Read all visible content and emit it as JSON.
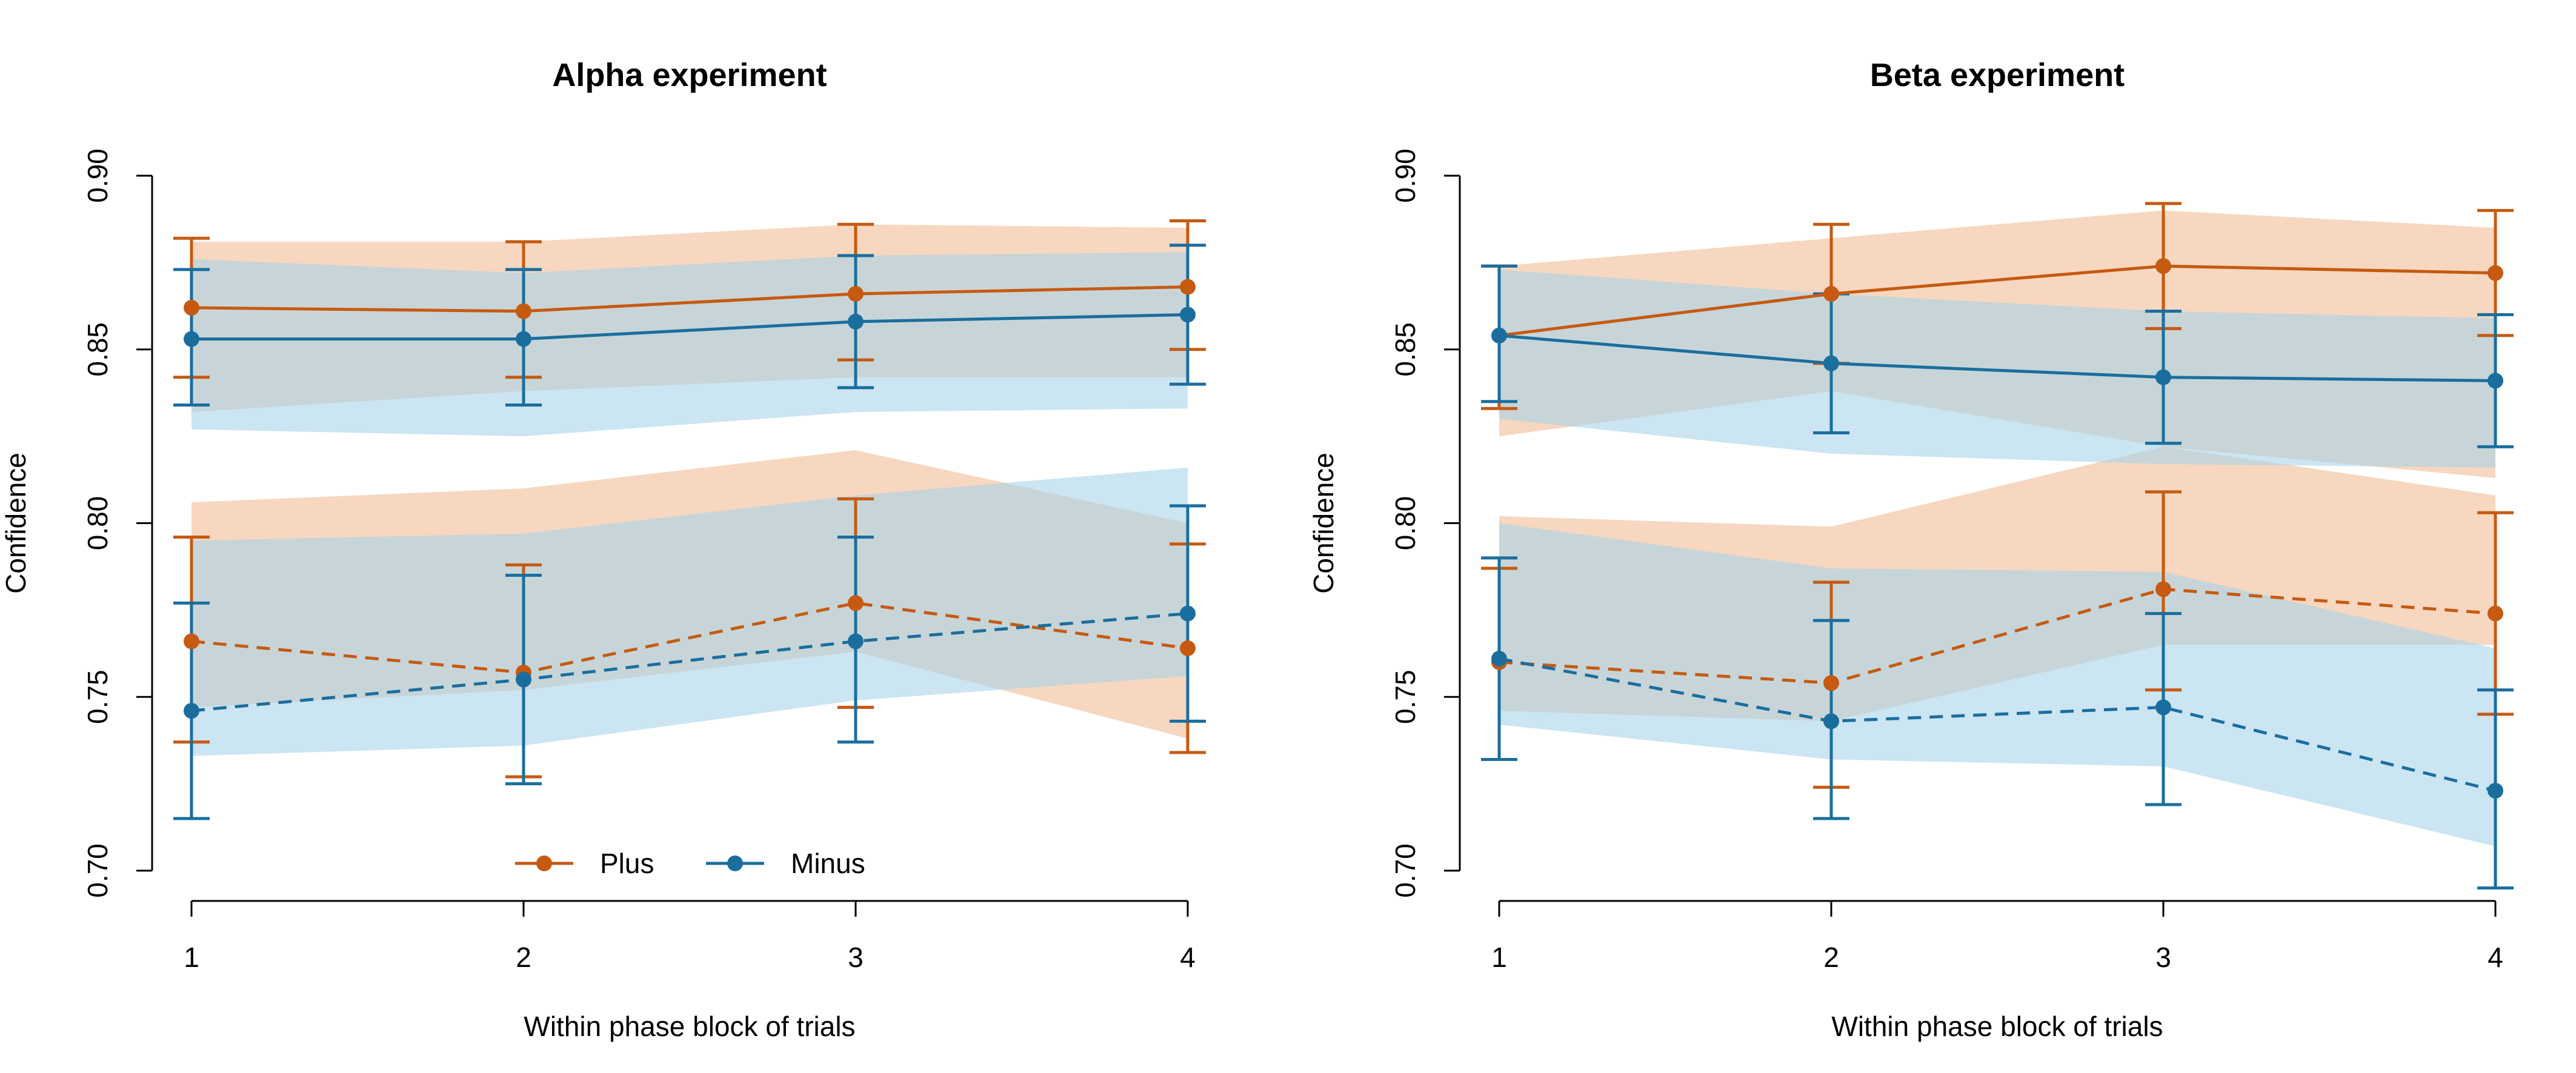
{
  "colors": {
    "plus": "#c65a11",
    "minus": "#1a6e9e",
    "plus_band": "#f4c9a9",
    "minus_band": "#a9d3ea"
  },
  "chart_data": [
    {
      "type": "line",
      "title": "Alpha experiment",
      "xlabel": "Within phase block of trials",
      "ylabel": "Confidence",
      "x": [
        1,
        2,
        3,
        4
      ],
      "x_ticks": [
        "1",
        "2",
        "3",
        "4"
      ],
      "y_ticks": [
        "0.70",
        "0.75",
        "0.80",
        "0.85",
        "0.90"
      ],
      "ylim": [
        0.7,
        0.9
      ],
      "grid": false,
      "legend": {
        "position": "bottom-center",
        "entries": [
          "Plus",
          "Minus"
        ]
      },
      "series": [
        {
          "name": "Plus",
          "style": "solid",
          "color_key": "plus",
          "values": [
            0.862,
            0.861,
            0.866,
            0.868
          ],
          "err_lo": [
            0.842,
            0.842,
            0.847,
            0.85
          ],
          "err_hi": [
            0.882,
            0.881,
            0.886,
            0.887
          ],
          "band_lo": [
            0.832,
            0.838,
            0.842,
            0.842
          ],
          "band_hi": [
            0.881,
            0.881,
            0.886,
            0.885
          ]
        },
        {
          "name": "Minus",
          "style": "solid",
          "color_key": "minus",
          "values": [
            0.853,
            0.853,
            0.858,
            0.86
          ],
          "err_lo": [
            0.834,
            0.834,
            0.839,
            0.84
          ],
          "err_hi": [
            0.873,
            0.873,
            0.877,
            0.88
          ],
          "band_lo": [
            0.827,
            0.825,
            0.832,
            0.833
          ],
          "band_hi": [
            0.876,
            0.872,
            0.877,
            0.878
          ]
        },
        {
          "name": "Plus",
          "style": "dashed",
          "color_key": "plus",
          "values": [
            0.766,
            0.757,
            0.777,
            0.764
          ],
          "err_lo": [
            0.737,
            0.727,
            0.747,
            0.734
          ],
          "err_hi": [
            0.796,
            0.788,
            0.807,
            0.794
          ],
          "band_lo": [
            0.747,
            0.752,
            0.763,
            0.738
          ],
          "band_hi": [
            0.806,
            0.81,
            0.821,
            0.8
          ]
        },
        {
          "name": "Minus",
          "style": "dashed",
          "color_key": "minus",
          "values": [
            0.746,
            0.755,
            0.766,
            0.774
          ],
          "err_lo": [
            0.715,
            0.725,
            0.737,
            0.743
          ],
          "err_hi": [
            0.777,
            0.785,
            0.796,
            0.805
          ],
          "band_lo": [
            0.733,
            0.736,
            0.749,
            0.756
          ],
          "band_hi": [
            0.795,
            0.797,
            0.808,
            0.816
          ]
        }
      ]
    },
    {
      "type": "line",
      "title": "Beta experiment",
      "xlabel": "Within phase block of trials",
      "ylabel": "Confidence",
      "x": [
        1,
        2,
        3,
        4
      ],
      "x_ticks": [
        "1",
        "2",
        "3",
        "4"
      ],
      "y_ticks": [
        "0.70",
        "0.75",
        "0.80",
        "0.85",
        "0.90"
      ],
      "ylim": [
        0.7,
        0.9
      ],
      "grid": false,
      "series": [
        {
          "name": "Plus",
          "style": "solid",
          "color_key": "plus",
          "values": [
            0.854,
            0.866,
            0.874,
            0.872
          ],
          "err_lo": [
            0.833,
            0.846,
            0.856,
            0.854
          ],
          "err_hi": [
            0.874,
            0.886,
            0.892,
            0.89
          ],
          "band_lo": [
            0.825,
            0.838,
            0.822,
            0.813
          ],
          "band_hi": [
            0.874,
            0.882,
            0.89,
            0.885
          ]
        },
        {
          "name": "Minus",
          "style": "solid",
          "color_key": "minus",
          "values": [
            0.854,
            0.846,
            0.842,
            0.841
          ],
          "err_lo": [
            0.835,
            0.826,
            0.823,
            0.822
          ],
          "err_hi": [
            0.874,
            0.866,
            0.861,
            0.86
          ],
          "band_lo": [
            0.83,
            0.82,
            0.817,
            0.816
          ],
          "band_hi": [
            0.873,
            0.866,
            0.861,
            0.859
          ]
        },
        {
          "name": "Plus",
          "style": "dashed",
          "color_key": "plus",
          "values": [
            0.76,
            0.754,
            0.781,
            0.774
          ],
          "err_lo": [
            0.732,
            0.724,
            0.752,
            0.745
          ],
          "err_hi": [
            0.787,
            0.783,
            0.809,
            0.803
          ],
          "band_lo": [
            0.746,
            0.743,
            0.765,
            0.765
          ],
          "band_hi": [
            0.802,
            0.799,
            0.822,
            0.808
          ]
        },
        {
          "name": "Minus",
          "style": "dashed",
          "color_key": "minus",
          "values": [
            0.761,
            0.743,
            0.747,
            0.723
          ],
          "err_lo": [
            0.732,
            0.715,
            0.719,
            0.695
          ],
          "err_hi": [
            0.79,
            0.772,
            0.774,
            0.752
          ],
          "band_lo": [
            0.742,
            0.732,
            0.73,
            0.707
          ],
          "band_hi": [
            0.8,
            0.787,
            0.786,
            0.764
          ]
        }
      ]
    }
  ]
}
